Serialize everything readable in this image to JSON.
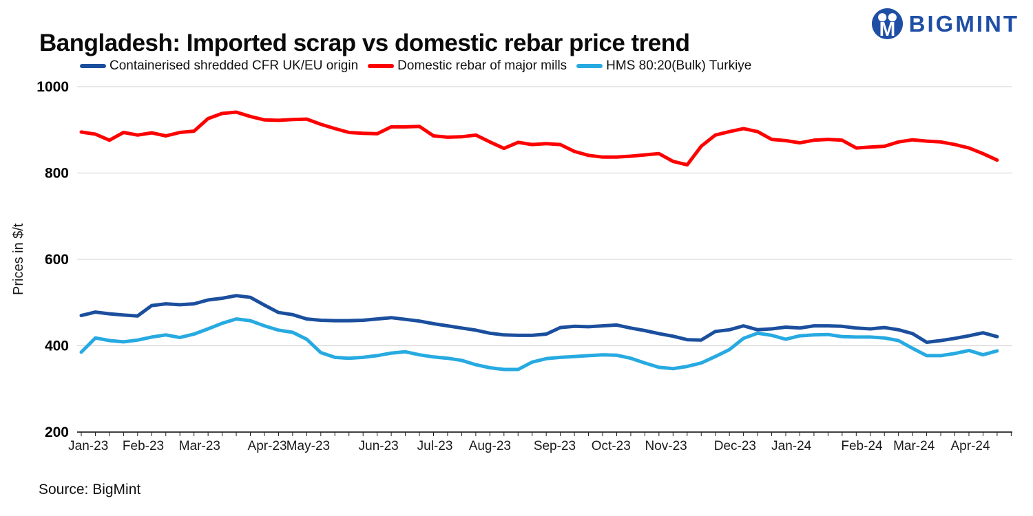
{
  "header": {
    "logo_text": "BIGMINT",
    "logo_color": "#1f4fa5"
  },
  "source": {
    "label": "Source: BigMint"
  },
  "chart_data": {
    "type": "line",
    "title": "Bangladesh: Imported scrap vs domestic rebar price trend",
    "xlabel": "",
    "ylabel": "Prices in $/t",
    "ylim": [
      200,
      1000
    ],
    "yticks": [
      1000,
      800,
      600,
      400,
      200
    ],
    "grid": "horizontal-only",
    "legend_position": "top",
    "frequency": "weekly",
    "n_points": 66,
    "x_labels": [
      "Jan-23",
      "Feb-23",
      "Mar-23",
      "Apr-23",
      "May-23",
      "Jun-23",
      "Jul-23",
      "Aug-23",
      "Sep-23",
      "Oct-23",
      "Nov-23",
      "Dec-23",
      "Jan-24",
      "Feb-24",
      "Mar-24",
      "Apr-24"
    ],
    "x_label_week_index": [
      0.5,
      4.4,
      8.4,
      13.2,
      16.1,
      21.1,
      25.1,
      29.0,
      33.6,
      37.6,
      41.5,
      46.4,
      50.4,
      55.4,
      59.1,
      63.1
    ],
    "series": [
      {
        "name": "Containerised shredded CFR UK/EU origin",
        "color": "#1b4f9e",
        "values": [
          470,
          478,
          474,
          471,
          469,
          493,
          497,
          495,
          497,
          506,
          510,
          516,
          512,
          494,
          477,
          472,
          462,
          459,
          458,
          458,
          459,
          462,
          465,
          461,
          457,
          451,
          446,
          441,
          436,
          429,
          425,
          424,
          424,
          427,
          442,
          445,
          444,
          446,
          448,
          441,
          435,
          428,
          422,
          414,
          413,
          433,
          437,
          446,
          437,
          439,
          443,
          441,
          446,
          446,
          445,
          441,
          439,
          442,
          437,
          428,
          408,
          412,
          417,
          423,
          430,
          421
        ]
      },
      {
        "name": "Domestic rebar of major mills",
        "color": "#fd0100",
        "values": [
          895,
          890,
          876,
          894,
          888,
          893,
          886,
          894,
          897,
          926,
          938,
          941,
          931,
          923,
          922,
          924,
          925,
          913,
          903,
          894,
          892,
          891,
          907,
          907,
          908,
          886,
          883,
          884,
          888,
          872,
          857,
          871,
          866,
          868,
          866,
          850,
          841,
          837,
          837,
          839,
          842,
          845,
          827,
          819,
          862,
          888,
          896,
          903,
          896,
          878,
          875,
          870,
          876,
          878,
          876,
          858,
          860,
          862,
          872,
          877,
          874,
          872,
          866,
          858,
          845,
          830
        ]
      },
      {
        "name": "HMS 80:20(Bulk) Turkiye",
        "color": "#27aae1",
        "values": [
          385,
          418,
          412,
          409,
          413,
          420,
          425,
          419,
          427,
          439,
          452,
          462,
          458,
          446,
          436,
          431,
          415,
          384,
          373,
          371,
          373,
          377,
          383,
          386,
          379,
          374,
          371,
          366,
          356,
          349,
          345,
          345,
          362,
          370,
          373,
          375,
          377,
          379,
          378,
          371,
          360,
          350,
          347,
          352,
          360,
          375,
          391,
          417,
          429,
          424,
          415,
          423,
          425,
          426,
          421,
          420,
          420,
          418,
          412,
          394,
          377,
          377,
          382,
          389,
          379,
          388
        ]
      }
    ]
  }
}
